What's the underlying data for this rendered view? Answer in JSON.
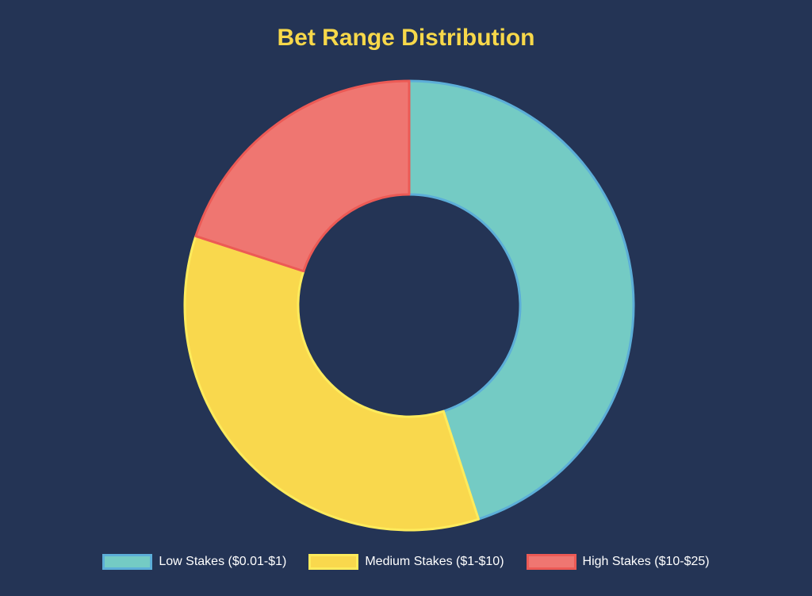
{
  "chart_data": {
    "type": "pie",
    "title": "Bet Range Distribution",
    "title_color": "#F7D84A",
    "background": "#243455",
    "legend_position": "bottom",
    "donut": true,
    "categories": [
      "Low Stakes ($0.01-$1)",
      "Medium Stakes ($1-$10)",
      "High Stakes ($10-$25)"
    ],
    "values": [
      45,
      35,
      20
    ],
    "colors": [
      "#74CBC4",
      "#F9D84D",
      "#EF7671"
    ],
    "border_colors": [
      "#5CAED8",
      "#FDEB5C",
      "#EC5A55"
    ]
  }
}
